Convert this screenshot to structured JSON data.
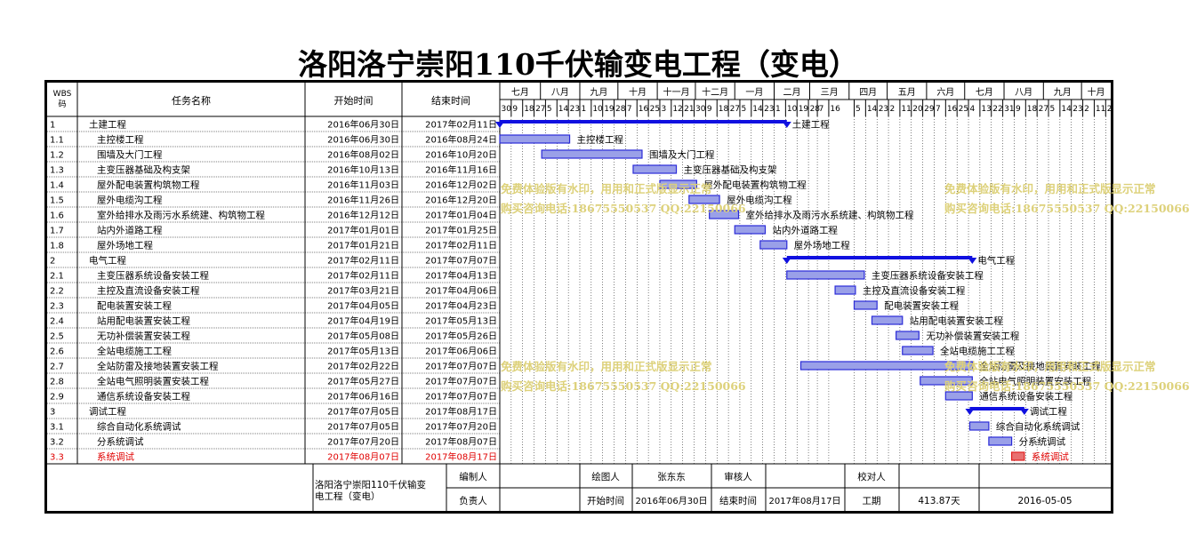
{
  "title": "洛阳洛宁崇阳110千伏输变电工程（变电）",
  "headers": {
    "wbs": "WBS码",
    "name": "任务名称",
    "start": "开始时间",
    "end": "结束时间"
  },
  "months": [
    {
      "label": "七月",
      "ticks": [
        "30",
        "9",
        "18",
        "27"
      ]
    },
    {
      "label": "八月",
      "ticks": [
        "5",
        "14",
        "23"
      ]
    },
    {
      "label": "九月",
      "ticks": [
        "1",
        "10",
        "19",
        "28"
      ]
    },
    {
      "label": "十月",
      "ticks": [
        "7",
        "16",
        "25"
      ]
    },
    {
      "label": "十一月",
      "ticks": [
        "3",
        "12",
        "21"
      ]
    },
    {
      "label": "十二月",
      "ticks": [
        "30",
        "9",
        "18",
        "27"
      ]
    },
    {
      "label": "一月",
      "ticks": [
        "5",
        "14",
        "23"
      ]
    },
    {
      "label": "二月",
      "ticks": [
        "1",
        "10",
        "19",
        "28"
      ]
    },
    {
      "label": "三月",
      "ticks": [
        "7",
        "16"
      ]
    },
    {
      "label": "四月",
      "ticks": [
        "5",
        "14",
        "23"
      ]
    },
    {
      "label": "五月",
      "ticks": [
        "2",
        "11",
        "20",
        "29"
      ]
    },
    {
      "label": "六月",
      "ticks": [
        "7",
        "16",
        "25"
      ]
    },
    {
      "label": "七月",
      "ticks": [
        "4",
        "13",
        "22",
        "31"
      ]
    },
    {
      "label": "八月",
      "ticks": [
        "9",
        "18",
        "27"
      ]
    },
    {
      "label": "九月",
      "ticks": [
        "5",
        "14",
        "23"
      ]
    },
    {
      "label": "十月",
      "ticks": [
        "2",
        "11",
        "20"
      ]
    }
  ],
  "chart_data": {
    "type": "gantt",
    "x_range": [
      "2016-06-30",
      "2017-10-20"
    ],
    "tasks": [
      {
        "wbs": "1",
        "name": "土建工程",
        "start": "2016年06月30日",
        "end": "2017年02月11日",
        "start_date": "2016-06-30",
        "end_date": "2017-02-11",
        "summary": true,
        "level": 0
      },
      {
        "wbs": "1.1",
        "name": "主控楼工程",
        "start": "2016年06月30日",
        "end": "2016年08月24日",
        "start_date": "2016-06-30",
        "end_date": "2016-08-24",
        "level": 1
      },
      {
        "wbs": "1.2",
        "name": "围墙及大门工程",
        "start": "2016年08月02日",
        "end": "2016年10月20日",
        "start_date": "2016-08-02",
        "end_date": "2016-10-20",
        "level": 1
      },
      {
        "wbs": "1.3",
        "name": "主变压器基础及构支架",
        "start": "2016年10月13日",
        "end": "2016年11月16日",
        "start_date": "2016-10-13",
        "end_date": "2016-11-16",
        "level": 1
      },
      {
        "wbs": "1.4",
        "name": "屋外配电装置构筑物工程",
        "start": "2016年11月03日",
        "end": "2016年12月02日",
        "start_date": "2016-11-03",
        "end_date": "2016-12-02",
        "level": 1
      },
      {
        "wbs": "1.5",
        "name": "屋外电缆沟工程",
        "start": "2016年11月26日",
        "end": "2016年12月20日",
        "start_date": "2016-11-26",
        "end_date": "2016-12-20",
        "level": 1
      },
      {
        "wbs": "1.6",
        "name": "室外给排水及雨污水系统建、构筑物工程",
        "start": "2016年12月12日",
        "end": "2017年01月04日",
        "start_date": "2016-12-12",
        "end_date": "2017-01-04",
        "level": 1
      },
      {
        "wbs": "1.7",
        "name": "站内外道路工程",
        "start": "2017年01月01日",
        "end": "2017年01月25日",
        "start_date": "2017-01-01",
        "end_date": "2017-01-25",
        "level": 1
      },
      {
        "wbs": "1.8",
        "name": "屋外场地工程",
        "start": "2017年01月21日",
        "end": "2017年02月11日",
        "start_date": "2017-01-21",
        "end_date": "2017-02-11",
        "level": 1
      },
      {
        "wbs": "2",
        "name": "电气工程",
        "start": "2017年02月11日",
        "end": "2017年07月07日",
        "start_date": "2017-02-11",
        "end_date": "2017-07-07",
        "summary": true,
        "level": 0
      },
      {
        "wbs": "2.1",
        "name": "主变压器系统设备安装工程",
        "start": "2017年02月11日",
        "end": "2017年04月13日",
        "start_date": "2017-02-11",
        "end_date": "2017-04-13",
        "level": 1
      },
      {
        "wbs": "2.2",
        "name": "主控及直流设备安装工程",
        "start": "2017年03月21日",
        "end": "2017年04月06日",
        "start_date": "2017-03-21",
        "end_date": "2017-04-06",
        "level": 1
      },
      {
        "wbs": "2.3",
        "name": "配电装置安装工程",
        "start": "2017年04月05日",
        "end": "2017年04月23日",
        "start_date": "2017-04-05",
        "end_date": "2017-04-23",
        "level": 1
      },
      {
        "wbs": "2.4",
        "name": "站用配电装置安装工程",
        "start": "2017年04月19日",
        "end": "2017年05月13日",
        "start_date": "2017-04-19",
        "end_date": "2017-05-13",
        "level": 1
      },
      {
        "wbs": "2.5",
        "name": "无功补偿装置安装工程",
        "start": "2017年05月08日",
        "end": "2017年05月26日",
        "start_date": "2017-05-08",
        "end_date": "2017-05-26",
        "level": 1
      },
      {
        "wbs": "2.6",
        "name": "全站电缆施工工程",
        "start": "2017年05月13日",
        "end": "2017年06月06日",
        "start_date": "2017-05-13",
        "end_date": "2017-06-06",
        "level": 1
      },
      {
        "wbs": "2.7",
        "name": "全站防雷及接地装置安装工程",
        "start": "2017年02月22日",
        "end": "2017年07月07日",
        "start_date": "2017-02-22",
        "end_date": "2017-07-07",
        "level": 1
      },
      {
        "wbs": "2.8",
        "name": "全站电气照明装置安装工程",
        "start": "2017年05月27日",
        "end": "2017年07月07日",
        "start_date": "2017-05-27",
        "end_date": "2017-07-07",
        "level": 1
      },
      {
        "wbs": "2.9",
        "name": "通信系统设备安装工程",
        "start": "2017年06月16日",
        "end": "2017年07月07日",
        "start_date": "2017-06-16",
        "end_date": "2017-07-07",
        "level": 1
      },
      {
        "wbs": "3",
        "name": "调试工程",
        "start": "2017年07月05日",
        "end": "2017年08月17日",
        "start_date": "2017-07-05",
        "end_date": "2017-08-17",
        "summary": true,
        "level": 0
      },
      {
        "wbs": "3.1",
        "name": "综合自动化系统调试",
        "start": "2017年07月05日",
        "end": "2017年07月20日",
        "start_date": "2017-07-05",
        "end_date": "2017-07-20",
        "level": 1
      },
      {
        "wbs": "3.2",
        "name": "分系统调试",
        "start": "2017年07月20日",
        "end": "2017年08月07日",
        "start_date": "2017-07-20",
        "end_date": "2017-08-07",
        "level": 1
      },
      {
        "wbs": "3.3",
        "name": "系统调试",
        "start": "2017年08月07日",
        "end": "2017年08月17日",
        "start_date": "2017-08-07",
        "end_date": "2017-08-17",
        "level": 1,
        "highlight": true
      }
    ]
  },
  "footer": {
    "project": "洛阳洛宁崇阳110千伏输变电工程（变电）",
    "editor_label": "编制人",
    "editor": "",
    "drawer_label": "绘图人",
    "drawer": "张东东",
    "reviewer_label": "审核人",
    "reviewer": "",
    "checker_label": "校对人",
    "checker": "",
    "owner_label": "负责人",
    "owner": "",
    "start_label": "开始时间",
    "start": "2016年06月30日",
    "end_label": "结束时间",
    "end": "2017年08月17日",
    "duration_label": "工期",
    "duration": "413.87天",
    "date": "2016-05-05"
  },
  "watermarks": [
    {
      "line1": "免费体验版有水印，用用和正式版显示正常",
      "line2": "购买咨询电话:18675550537 QQ:22150066"
    },
    {
      "line1": "免费体验版有水印，用用和正式版显示正常",
      "line2": "购买咨询电话:18675550537 QQ:22150066"
    },
    {
      "line1": "免费体验版有水印，用用和正式版显示正常",
      "line2": "购买咨询电话:18675550537 QQ:22150066"
    },
    {
      "line1": "免费体验版有水印，用用和正式版显示正常",
      "line2": "购买咨询电话:18675550537 QQ:22150066"
    }
  ],
  "colors": {
    "bar": "#2b2bd8",
    "bar_fill": "#9aa0e8",
    "summary": "#1010e0",
    "highlight": "#e02020",
    "highlight_text": "#e00000"
  }
}
